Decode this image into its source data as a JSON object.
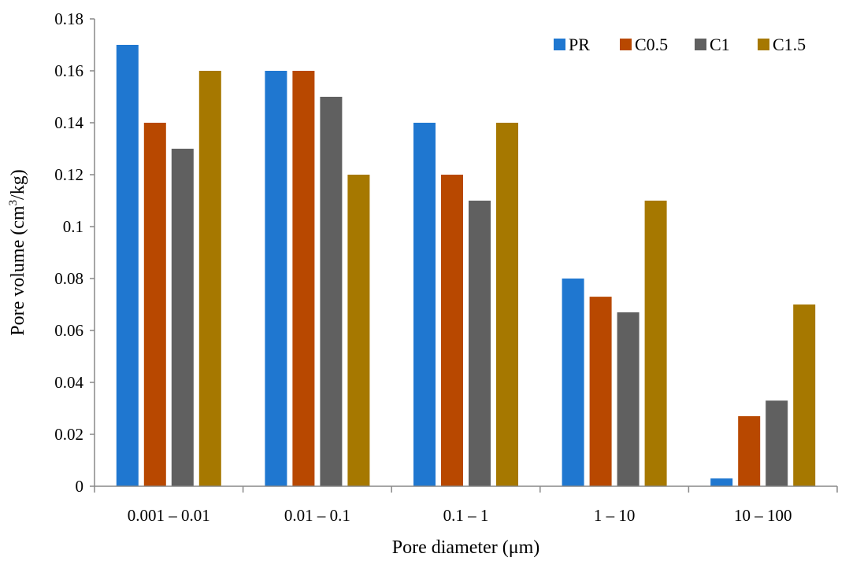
{
  "chart_data": {
    "type": "bar",
    "title": "",
    "xlabel": "Pore diameter (μm)",
    "ylabel_main": "Pore volume (cm",
    "ylabel_sup": "3",
    "ylabel_tail": "/kg)",
    "ylim": [
      0,
      0.18
    ],
    "yticks": [
      "0",
      "0.02",
      "0.04",
      "0.06",
      "0.08",
      "0.1",
      "0.12",
      "0.14",
      "0.16",
      "0.18"
    ],
    "categories": [
      "0.001 – 0.01",
      "0.01 – 0.1",
      "0.1 – 1",
      "1 – 10",
      "10 – 100"
    ],
    "legend_position": "top-right",
    "grid": false,
    "series": [
      {
        "name": "PR",
        "color": "#1f77d0",
        "values": [
          0.17,
          0.16,
          0.14,
          0.08,
          0.003
        ]
      },
      {
        "name": "C0.5",
        "color": "#b84800",
        "values": [
          0.14,
          0.16,
          0.12,
          0.073,
          0.027
        ]
      },
      {
        "name": "C1",
        "color": "#606060",
        "values": [
          0.13,
          0.15,
          0.11,
          0.067,
          0.033
        ]
      },
      {
        "name": "C1.5",
        "color": "#a67800",
        "values": [
          0.16,
          0.12,
          0.14,
          0.11,
          0.07
        ]
      }
    ]
  }
}
